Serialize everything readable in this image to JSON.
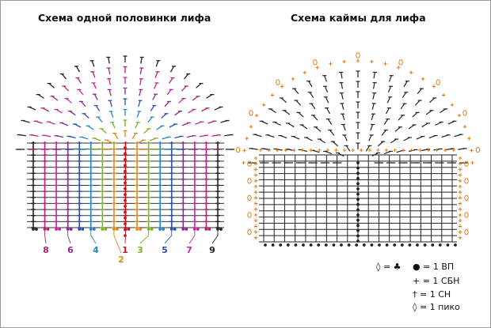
{
  "titles": {
    "left": "Схема одной половинки лифа",
    "right": "Схема каймы для лифа"
  },
  "left_chart": {
    "column_labels": [
      {
        "text": "8",
        "color": "#b0246e"
      },
      {
        "text": "6",
        "color": "#8a2a8a"
      },
      {
        "text": "4",
        "color": "#2b86c4"
      },
      {
        "text": "2",
        "color": "#e08a1e"
      },
      {
        "text": "1",
        "color": "#c0182a"
      },
      {
        "text": "3",
        "color": "#7fb02a"
      },
      {
        "text": "5",
        "color": "#2a4fb0"
      },
      {
        "text": "7",
        "color": "#c02a9a"
      },
      {
        "text": "9",
        "color": "#222222"
      }
    ],
    "column_colors_left_to_right": [
      "#222222",
      "#b0246e",
      "#c02a9a",
      "#8a2a8a",
      "#2a4fb0",
      "#2b86c4",
      "#7fb02a",
      "#e08a1e",
      "#c0182a",
      "#e08a1e",
      "#7fb02a",
      "#2b86c4",
      "#2a4fb0",
      "#8a2a8a",
      "#c02a9a",
      "#b0246e",
      "#222222"
    ]
  },
  "right_chart": {
    "stitch_color": "#222222",
    "border_color": "#e0801e"
  },
  "legend": {
    "picot_eq": "=",
    "items": [
      {
        "symbol": "●",
        "text": "= 1 ВП"
      },
      {
        "symbol": "+",
        "text": "= 1 СБН"
      },
      {
        "symbol": "†",
        "text": "= 1 СН"
      },
      {
        "symbol": "◊",
        "text": "= 1 пико"
      }
    ]
  }
}
